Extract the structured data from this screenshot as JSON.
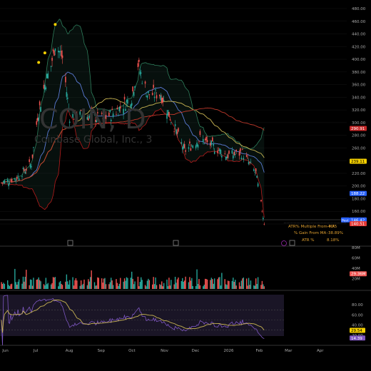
{
  "watermark": {
    "symbol": "COIN, D",
    "name": "Coinbase Global, Inc., 3"
  },
  "price_axis": {
    "ticks": [
      "480.00",
      "460.00",
      "440.00",
      "420.00",
      "400.00",
      "380.00",
      "360.00",
      "340.00",
      "320.00",
      "300.00",
      "280.00",
      "260.00",
      "240.00",
      "220.00",
      "200.00",
      "180.00",
      "160.00",
      "140.00"
    ],
    "badges": [
      {
        "label": "290.91",
        "value": 290.91,
        "color": "#c62828"
      },
      {
        "label": "239.11",
        "value": 239.11,
        "color": "#f5d000",
        "text": "#000"
      },
      {
        "label": "188.22",
        "value": 188.22,
        "color": "#2962ff"
      },
      {
        "label": "146.42",
        "value": 146.42,
        "color": "#2962ff",
        "prefix": "Post"
      },
      {
        "label": "140.51",
        "value": 140.51,
        "color": "#e53935"
      }
    ]
  },
  "stats": [
    {
      "label": "ATR% Multiple From MA",
      "value": "-4.75"
    },
    {
      "label": "% Gain From MA",
      "value": "-38.89%"
    },
    {
      "label": "ATR %",
      "value": "8.18%"
    }
  ],
  "volume_axis": {
    "ticks": [
      "80M",
      "60M",
      "40M",
      "20M"
    ],
    "badge": "29.36M"
  },
  "rsi_axis": {
    "ticks": [
      "80.00",
      "60.00",
      "40.00",
      "20.00"
    ],
    "badges": [
      {
        "label": "29.54",
        "color": "#f5d000",
        "text": "#000"
      },
      {
        "label": "14.39",
        "color": "#7e57c2",
        "text": "#fff"
      }
    ]
  },
  "time_axis": {
    "labels": [
      "Jun",
      "Jul",
      "Aug",
      "Sep",
      "Oct",
      "Nov",
      "Dec",
      "2026",
      "Feb",
      "Mar",
      "Apr"
    ]
  },
  "colors": {
    "up": "#26a69a",
    "down": "#ef5350",
    "bb": "#2e7d5b",
    "ma_fast": "#5b7bd5",
    "ma_mid": "#c8b452",
    "ma_slow": "#c0392b",
    "rsi": "#7e57c2",
    "rsi_ma": "#c8b452"
  },
  "chart_data": {
    "type": "candlestick",
    "price_anchors_dates": [
      "2025-05-27",
      "2025-06-10",
      "2025-06-25",
      "2025-07-01",
      "2025-07-08",
      "2025-07-14",
      "2025-07-18",
      "2025-07-25",
      "2025-08-01",
      "2025-08-15",
      "2025-09-02",
      "2025-09-15",
      "2025-09-30",
      "2025-10-06",
      "2025-10-15",
      "2025-10-28",
      "2025-11-07",
      "2025-11-20",
      "2025-12-05",
      "2025-12-15",
      "2025-12-31",
      "2026-01-15",
      "2026-01-28",
      "2026-02-05"
    ],
    "price_anchors_close": [
      205,
      212,
      235,
      310,
      360,
      390,
      425,
      402,
      310,
      312,
      305,
      318,
      340,
      392,
      345,
      345,
      305,
      255,
      275,
      265,
      248,
      252,
      220,
      142
    ],
    "volume_range_m": [
      5,
      32
    ],
    "rsi_range": [
      15,
      75
    ],
    "ylim": [
      140,
      480
    ],
    "rsi_ylim": [
      0,
      100
    ],
    "volume_ylim": [
      0,
      80
    ]
  }
}
